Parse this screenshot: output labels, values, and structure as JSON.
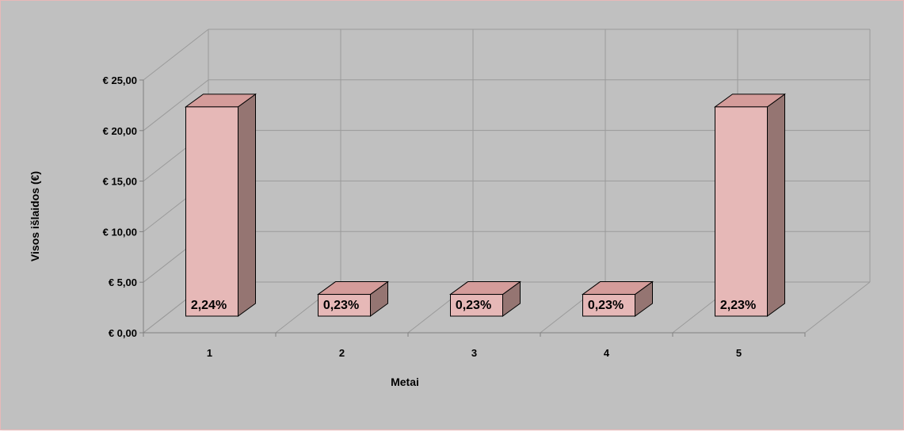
{
  "chart_data": {
    "type": "bar",
    "categories": [
      "1",
      "2",
      "3",
      "4",
      "5"
    ],
    "values": [
      23.1,
      2.4,
      2.4,
      2.4,
      23.1
    ],
    "data_labels": [
      "2,24%",
      "0,23%",
      "0,23%",
      "0,23%",
      "2,23%"
    ],
    "y_ticks": [
      "€ 0,00",
      "€ 5,00",
      "€ 10,00",
      "€ 15,00",
      "€ 20,00",
      "€ 25,00"
    ],
    "ylim": [
      0,
      25
    ],
    "xlabel": "Metai",
    "ylabel": "Visos išlaidos (€)",
    "grid": true,
    "legend": "none",
    "colors": {
      "background": "#c0c0c0",
      "bar_front": "#e6b8b7",
      "bar_top": "#d49c9a",
      "bar_side": "#957572",
      "gridline": "#9a9a9a"
    }
  }
}
